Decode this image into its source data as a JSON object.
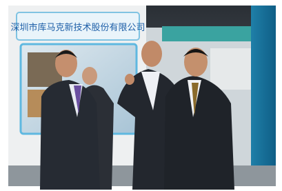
{
  "sign": {
    "text": "深圳市库马克新技术股份有限公司"
  }
}
